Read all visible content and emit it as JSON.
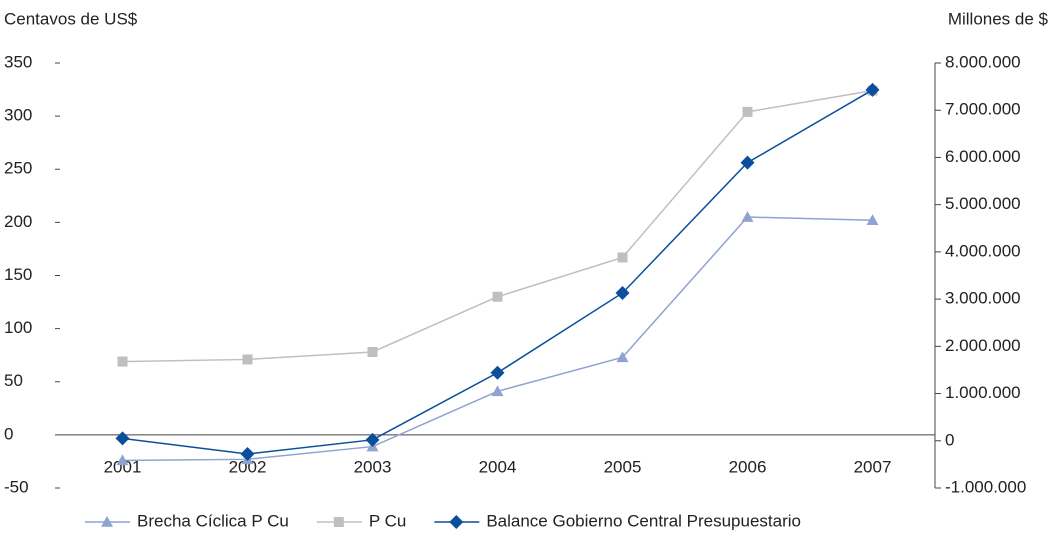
{
  "chart_data": {
    "type": "line",
    "y_label": "Centavos de US$",
    "y2_label": "Millones de $",
    "categories": [
      "2001",
      "2002",
      "2003",
      "2004",
      "2005",
      "2006",
      "2007"
    ],
    "ylim": [
      -50,
      350
    ],
    "yticks": [
      -50,
      0,
      50,
      100,
      150,
      200,
      250,
      300,
      350
    ],
    "y2lim": [
      -1000000,
      8000000
    ],
    "y2ticks": [
      {
        "value": -1000000,
        "label": "-1.000.000"
      },
      0,
      {
        "value": 1000000,
        "label": "1.000.000"
      },
      {
        "value": 2000000,
        "label": "2.000.000"
      },
      {
        "value": 3000000,
        "label": "3.000.000"
      },
      {
        "value": 4000000,
        "label": "4.000.000"
      },
      {
        "value": 5000000,
        "label": "5.000.000"
      },
      {
        "value": 6000000,
        "label": "6.000.000"
      },
      {
        "value": 7000000,
        "label": "7.000.000"
      },
      {
        "value": 8000000,
        "label": "8.000.000"
      }
    ],
    "legend": "bottom",
    "series": [
      {
        "name": "Brecha Cíclica P Cu",
        "color": "#8fa3d1",
        "marker": "triangle",
        "values": [
          -24,
          -23,
          -11,
          41,
          73,
          205,
          202
        ]
      },
      {
        "name": "P Cu",
        "color": "#bfbfbf",
        "marker": "square",
        "values": [
          69,
          71,
          78,
          130,
          167,
          304,
          324
        ]
      },
      {
        "name": "Balance Gobierno Central Presupuestario",
        "color": "#0a4f9c",
        "marker": "diamond",
        "axis": "y2",
        "values": [
          50000,
          -280000,
          20000,
          1440000,
          3130000,
          5890000,
          7430000
        ]
      }
    ]
  }
}
